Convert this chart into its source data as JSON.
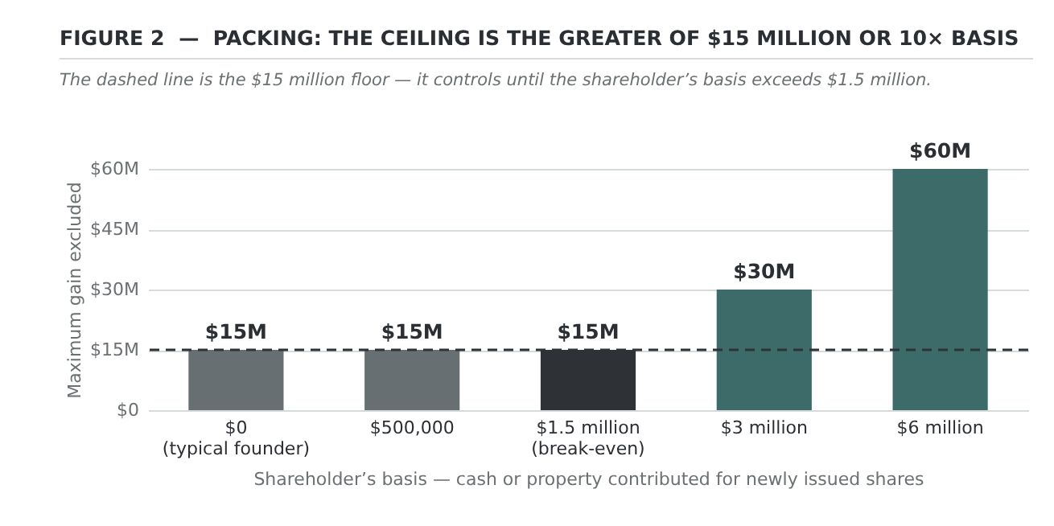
{
  "chart_data": {
    "type": "bar",
    "title": "FIGURE 2  —  PACKING: THE CEILING IS THE GREATER OF $15 MILLION OR 10× BASIS",
    "subtitle": "The dashed line is the $15 million floor — it controls until the shareholder’s basis exceeds $1.5 million.",
    "xlabel": "Shareholder’s basis — cash or property contributed for newly issued shares",
    "ylabel": "Maximum gain excluded",
    "categories": [
      "$0\n(typical founder)",
      "$500,000",
      "$1.5 million\n(break-even)",
      "$3 million",
      "$6 million"
    ],
    "values": [
      15,
      15,
      15,
      30,
      60
    ],
    "colors": [
      "#686f72",
      "#686f72",
      "#2e3236",
      "#3d6b69",
      "#3d6b69"
    ],
    "value_labels": [
      "$15M",
      "$15M",
      "$15M",
      "$30M",
      "$60M"
    ],
    "ylim": [
      0,
      60
    ],
    "yticks": [
      {
        "value": 0,
        "label": "$0"
      },
      {
        "value": 15,
        "label": "$15M"
      },
      {
        "value": 30,
        "label": "$30M"
      },
      {
        "value": 45,
        "label": "$45M"
      },
      {
        "value": 60,
        "label": "$60M"
      }
    ],
    "grid": "y",
    "ref_lines": [
      {
        "axis": "y",
        "value": 15,
        "color": "#2e3236",
        "line_style": "dashed"
      }
    ]
  }
}
